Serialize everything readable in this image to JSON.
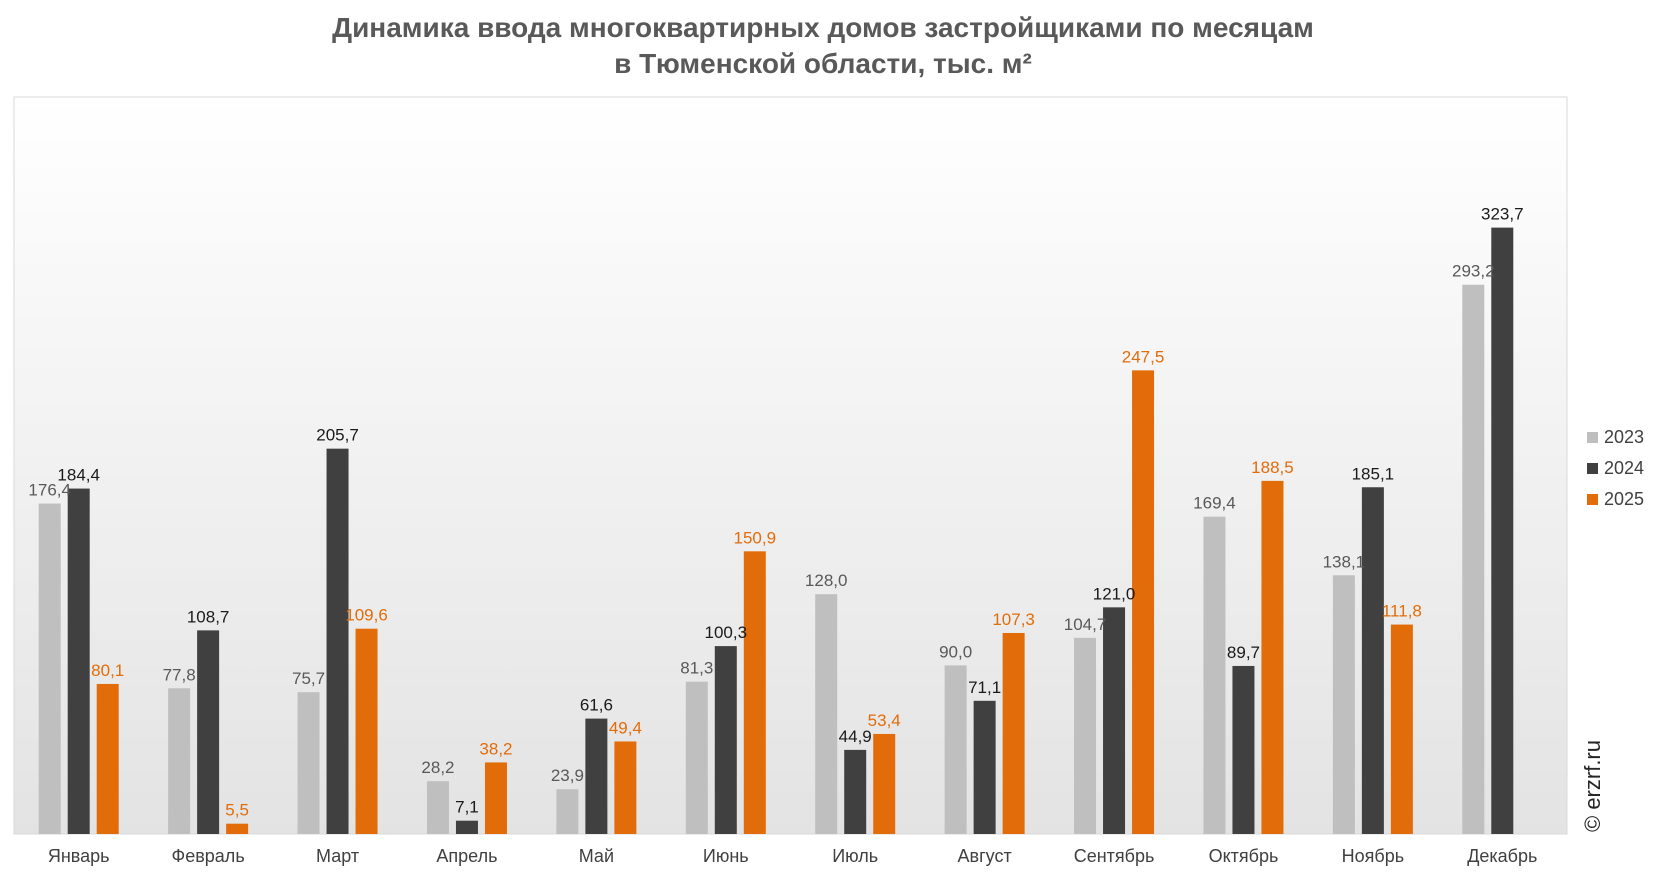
{
  "chart_data": {
    "type": "bar",
    "title": [
      "Динамика ввода многоквартирных домов застройщиками по месяцам",
      "в Тюменской области, тыс. м²"
    ],
    "categories": [
      "Январь",
      "Февраль",
      "Март",
      "Апрель",
      "Май",
      "Июнь",
      "Июль",
      "Август",
      "Сентябрь",
      "Октябрь",
      "Ноябрь",
      "Декабрь"
    ],
    "series": [
      {
        "name": "2023",
        "color": "#bfbfbf",
        "label_color": "#595959",
        "values": [
          176.4,
          77.8,
          75.7,
          28.2,
          23.9,
          81.3,
          128.0,
          90.0,
          104.7,
          169.4,
          138.1,
          293.2
        ],
        "labels": [
          "176,4",
          "77,8",
          "75,7",
          "28,2",
          "23,9",
          "81,3",
          "128,0",
          "90,0",
          "104,7",
          "169,4",
          "138,1",
          "293,2"
        ]
      },
      {
        "name": "2024",
        "color": "#404040",
        "label_color": "#1a1a1a",
        "values": [
          184.4,
          108.7,
          205.7,
          7.1,
          61.6,
          100.3,
          44.9,
          71.1,
          121.0,
          89.7,
          185.1,
          323.7
        ],
        "labels": [
          "184,4",
          "108,7",
          "205,7",
          "7,1",
          "61,6",
          "100,3",
          "44,9",
          "71,1",
          "121,0",
          "89,7",
          "185,1",
          "323,7"
        ]
      },
      {
        "name": "2025",
        "color": "#e36c0a",
        "label_color": "#e36c0a",
        "values": [
          80.1,
          5.5,
          109.6,
          38.2,
          49.4,
          150.9,
          53.4,
          107.3,
          247.5,
          188.5,
          111.8,
          null
        ],
        "labels": [
          "80,1",
          "5,5",
          "109,6",
          "38,2",
          "49,4",
          "150,9",
          "53,4",
          "107,3",
          "247,5",
          "188,5",
          "111,8",
          null
        ]
      }
    ],
    "ylim": [
      0,
      350
    ],
    "grid": false,
    "legend_position": "right",
    "watermark": "© erzrf.ru"
  }
}
